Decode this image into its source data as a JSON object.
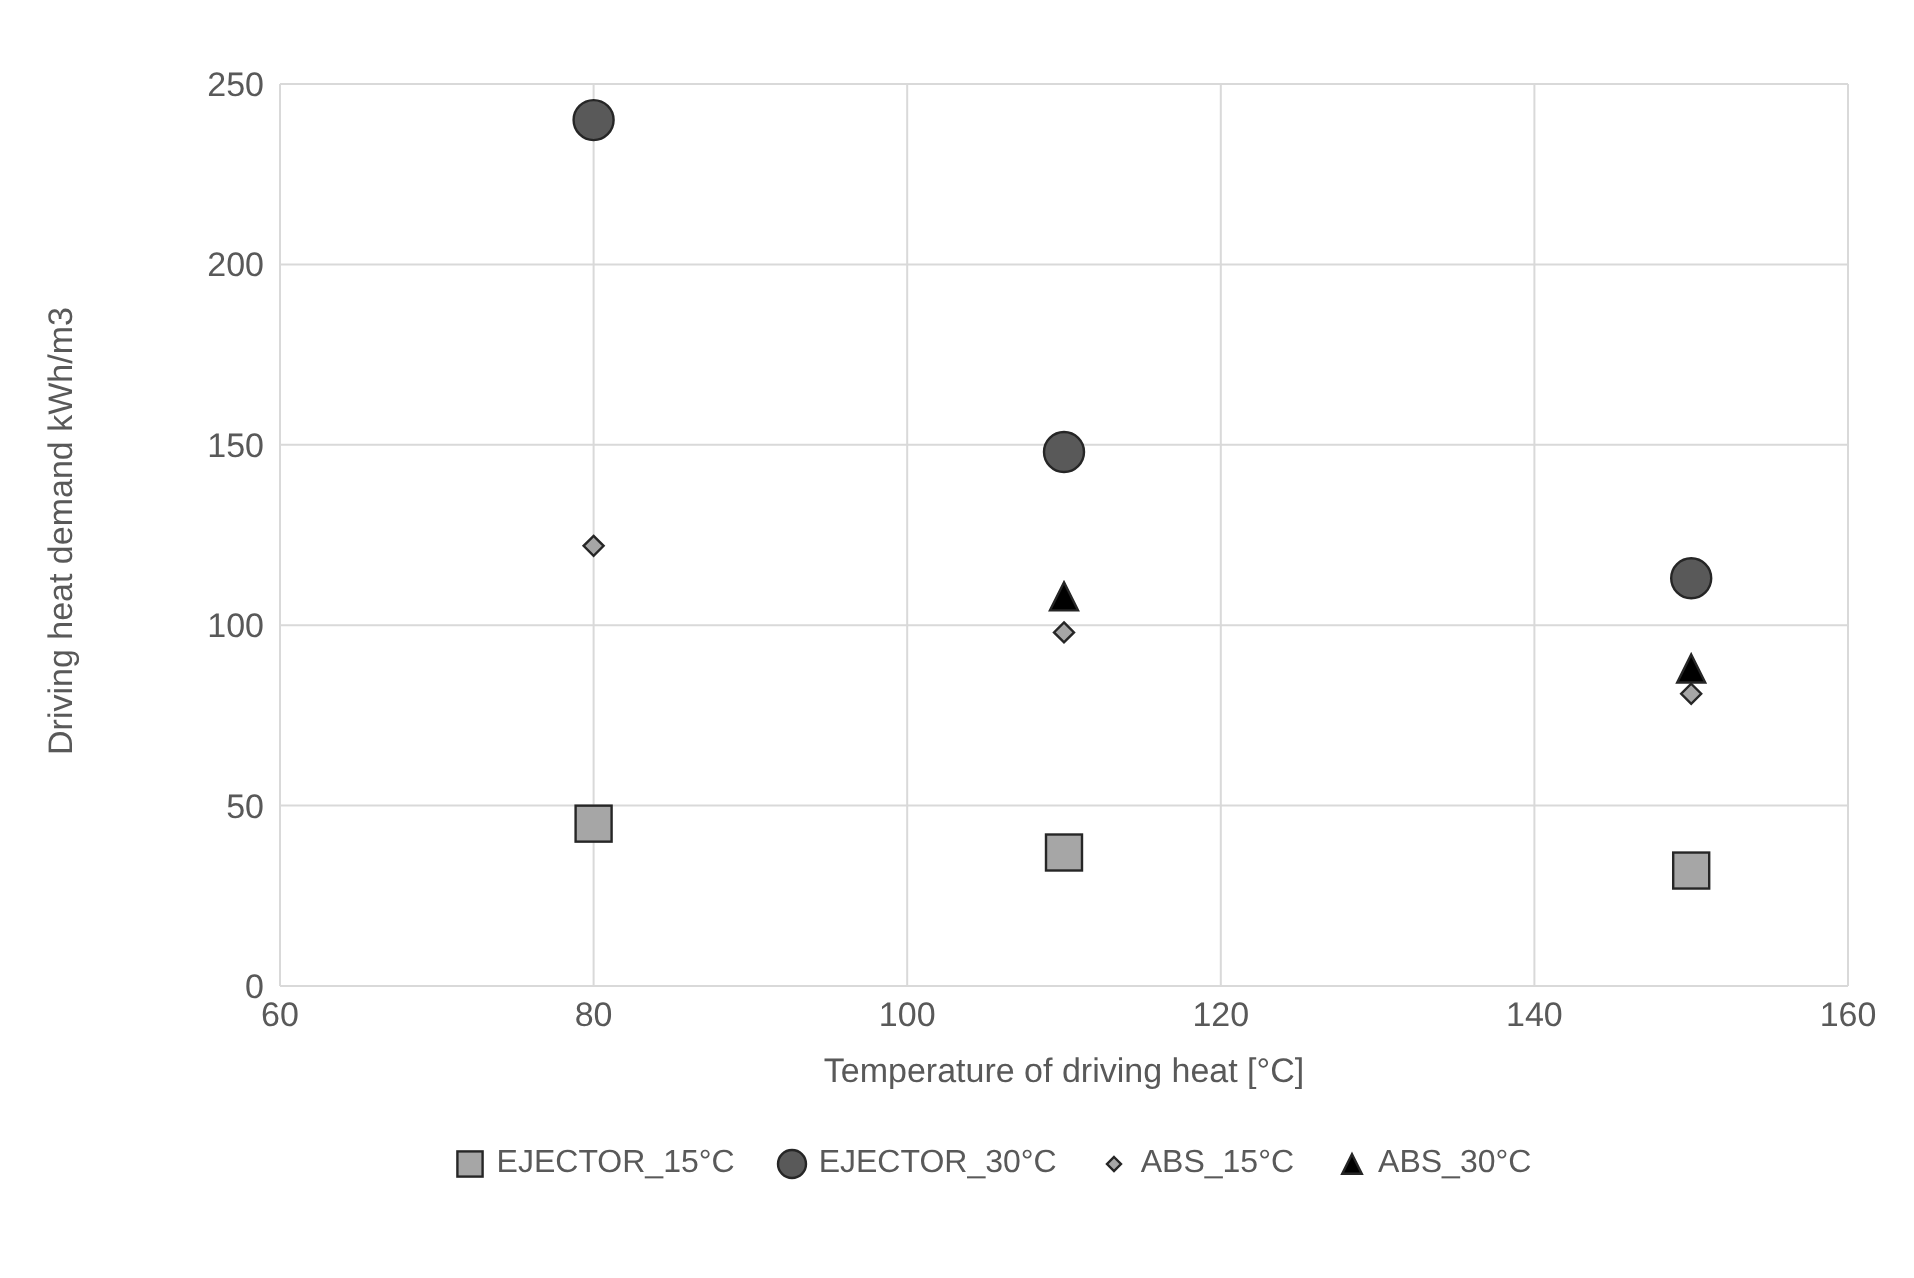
{
  "chart_data": {
    "type": "scatter",
    "xlabel": "Temperature of driving heat [°C]",
    "ylabel": "Driving heat demand kWh/m3",
    "xlim": [
      60,
      160
    ],
    "xticks": [
      60,
      80,
      100,
      120,
      140,
      160
    ],
    "ylim": [
      0,
      250
    ],
    "yticks": [
      0,
      50,
      100,
      150,
      200,
      250
    ],
    "grid": true,
    "legend": "bottom",
    "series": [
      {
        "name": "EJECTOR_15°C",
        "color": "#a6a6a6",
        "marker": "square",
        "x": [
          80,
          110,
          150
        ],
        "values": [
          45,
          37,
          32
        ]
      },
      {
        "name": "EJECTOR_30°C",
        "color": "#595959",
        "marker": "circle",
        "x": [
          80,
          110,
          150
        ],
        "values": [
          240,
          148,
          113
        ]
      },
      {
        "name": "ABS_15°C",
        "color": "#a6a6a6",
        "marker": "diamond",
        "x": [
          80,
          110,
          150
        ],
        "values": [
          122,
          98,
          81
        ]
      },
      {
        "name": "ABS_30°C",
        "color": "#000000",
        "marker": "triangle",
        "x": [
          110,
          150
        ],
        "values": [
          108,
          88
        ]
      }
    ]
  }
}
